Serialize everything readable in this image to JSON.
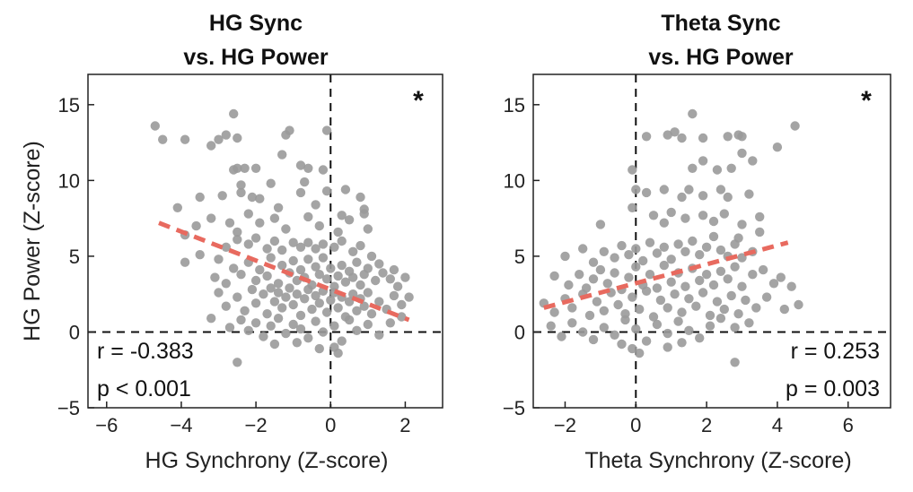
{
  "chart_data": [
    {
      "type": "scatter",
      "title_lines": [
        "HG Sync",
        "vs. HG Power"
      ],
      "xlabel": "HG Synchrony (Z-score)",
      "ylabel": "HG Power (Z-score)",
      "xlim": [
        -6.5,
        3
      ],
      "ylim": [
        -5,
        17
      ],
      "xticks": [
        -6,
        -4,
        -2,
        0,
        2
      ],
      "yticks": [
        -5,
        0,
        5,
        10,
        15
      ],
      "xtick_labels": [
        "−6",
        "−4",
        "−2",
        "0",
        "2"
      ],
      "ytick_labels": [
        "−5",
        "0",
        "5",
        "10",
        "15"
      ],
      "stats": [
        "r = -0.383",
        "p < 0.001"
      ],
      "significance": "*",
      "point_color": "#9a9a9a",
      "fit_color": "#e86a5f",
      "fit_line": [
        [
          -4.6,
          7.2
        ],
        [
          2.1,
          0.8
        ]
      ],
      "points": [
        [
          -4.7,
          13.6
        ],
        [
          -4.5,
          12.7
        ],
        [
          -3.9,
          12.7
        ],
        [
          -3.2,
          12.3
        ],
        [
          -3.0,
          12.7
        ],
        [
          -2.8,
          13.0
        ],
        [
          -2.6,
          14.4
        ],
        [
          -2.5,
          12.8
        ],
        [
          -1.2,
          13.0
        ],
        [
          -1.1,
          13.3
        ],
        [
          -0.1,
          13.3
        ],
        [
          -2.5,
          10.8
        ],
        [
          -2.3,
          10.8
        ],
        [
          -2.6,
          10.7
        ],
        [
          -2.0,
          10.8
        ],
        [
          -1.3,
          11.7
        ],
        [
          -0.8,
          11.0
        ],
        [
          -0.6,
          10.8
        ],
        [
          -0.2,
          10.7
        ],
        [
          -3.5,
          8.9
        ],
        [
          -2.9,
          9.0
        ],
        [
          -2.4,
          9.7
        ],
        [
          -2.4,
          9.2
        ],
        [
          -2.1,
          8.9
        ],
        [
          -1.9,
          8.8
        ],
        [
          -1.6,
          9.8
        ],
        [
          -1.4,
          8.2
        ],
        [
          -0.8,
          9.2
        ],
        [
          -0.7,
          9.9
        ],
        [
          -0.4,
          8.4
        ],
        [
          -0.1,
          9.3
        ],
        [
          0.4,
          9.4
        ],
        [
          0.8,
          8.9
        ],
        [
          0.9,
          8.1
        ],
        [
          -4.1,
          8.2
        ],
        [
          -3.6,
          7.0
        ],
        [
          -3.2,
          7.5
        ],
        [
          -2.7,
          7.2
        ],
        [
          -2.5,
          6.6
        ],
        [
          -2.2,
          7.8
        ],
        [
          -1.9,
          7.2
        ],
        [
          -1.5,
          7.5
        ],
        [
          -1.2,
          6.8
        ],
        [
          -0.6,
          7.6
        ],
        [
          -0.3,
          7.0
        ],
        [
          0.3,
          7.7
        ],
        [
          0.5,
          7.4
        ],
        [
          0.9,
          7.8
        ],
        [
          1.0,
          6.8
        ],
        [
          0.2,
          6.6
        ],
        [
          -3.9,
          6.4
        ],
        [
          -3.9,
          4.6
        ],
        [
          -3.5,
          5.1
        ],
        [
          -3.0,
          4.8
        ],
        [
          -2.8,
          5.6
        ],
        [
          -2.5,
          6.1
        ],
        [
          -2.2,
          5.8
        ],
        [
          -2.0,
          6.2
        ],
        [
          -1.7,
          5.5
        ],
        [
          -1.5,
          6.0
        ],
        [
          -1.3,
          5.4
        ],
        [
          -1.0,
          5.9
        ],
        [
          -0.8,
          5.6
        ],
        [
          -0.6,
          5.9
        ],
        [
          -0.4,
          5.5
        ],
        [
          -0.2,
          5.8
        ],
        [
          0.1,
          5.6
        ],
        [
          0.3,
          6.0
        ],
        [
          0.6,
          5.3
        ],
        [
          0.8,
          5.7
        ],
        [
          1.1,
          5.0
        ],
        [
          1.3,
          4.5
        ],
        [
          -3.1,
          3.6
        ],
        [
          -2.8,
          3.2
        ],
        [
          -2.6,
          4.2
        ],
        [
          -2.4,
          3.8
        ],
        [
          -2.2,
          4.6
        ],
        [
          -2.0,
          3.4
        ],
        [
          -1.9,
          4.1
        ],
        [
          -1.7,
          3.7
        ],
        [
          -1.6,
          4.9
        ],
        [
          -1.4,
          3.2
        ],
        [
          -1.3,
          4.4
        ],
        [
          -1.1,
          3.9
        ],
        [
          -1.0,
          4.7
        ],
        [
          -0.9,
          3.4
        ],
        [
          -0.8,
          4.1
        ],
        [
          -0.7,
          3.6
        ],
        [
          -0.6,
          4.8
        ],
        [
          -0.5,
          3.1
        ],
        [
          -0.4,
          4.3
        ],
        [
          -0.3,
          3.8
        ],
        [
          -0.2,
          4.9
        ],
        [
          -0.1,
          3.5
        ],
        [
          0.0,
          4.2
        ],
        [
          0.1,
          3.0
        ],
        [
          0.2,
          3.7
        ],
        [
          0.3,
          4.4
        ],
        [
          0.4,
          3.3
        ],
        [
          0.5,
          4.0
        ],
        [
          0.6,
          3.6
        ],
        [
          0.7,
          4.6
        ],
        [
          0.8,
          3.1
        ],
        [
          0.9,
          3.8
        ],
        [
          1.0,
          4.2
        ],
        [
          1.2,
          3.4
        ],
        [
          1.4,
          3.9
        ],
        [
          1.6,
          3.5
        ],
        [
          1.8,
          3.0
        ],
        [
          2.0,
          3.6
        ],
        [
          1.7,
          4.1
        ],
        [
          -3.0,
          2.6
        ],
        [
          -2.8,
          1.7
        ],
        [
          -2.5,
          2.3
        ],
        [
          -2.3,
          1.4
        ],
        [
          -2.1,
          2.8
        ],
        [
          -2.0,
          1.9
        ],
        [
          -1.8,
          2.5
        ],
        [
          -1.7,
          1.2
        ],
        [
          -1.6,
          2.9
        ],
        [
          -1.5,
          2.0
        ],
        [
          -1.4,
          2.6
        ],
        [
          -1.3,
          1.6
        ],
        [
          -1.2,
          2.3
        ],
        [
          -1.1,
          2.9
        ],
        [
          -1.0,
          1.8
        ],
        [
          -0.9,
          2.5
        ],
        [
          -0.8,
          1.1
        ],
        [
          -0.7,
          2.2
        ],
        [
          -0.6,
          2.8
        ],
        [
          -0.5,
          1.5
        ],
        [
          -0.4,
          2.4
        ],
        [
          -0.3,
          1.9
        ],
        [
          -0.2,
          2.7
        ],
        [
          -0.1,
          1.3
        ],
        [
          0.0,
          2.1
        ],
        [
          0.1,
          2.6
        ],
        [
          0.2,
          1.6
        ],
        [
          0.3,
          2.3
        ],
        [
          0.4,
          1.0
        ],
        [
          0.5,
          2.0
        ],
        [
          0.6,
          2.5
        ],
        [
          0.7,
          1.4
        ],
        [
          0.8,
          2.2
        ],
        [
          0.9,
          1.7
        ],
        [
          1.0,
          2.6
        ],
        [
          1.1,
          1.2
        ],
        [
          1.3,
          2.0
        ],
        [
          1.5,
          1.5
        ],
        [
          1.7,
          2.4
        ],
        [
          1.9,
          1.8
        ],
        [
          2.1,
          2.3
        ],
        [
          -3.2,
          0.9
        ],
        [
          -2.7,
          0.3
        ],
        [
          -2.4,
          0.8
        ],
        [
          -2.2,
          0.1
        ],
        [
          -2.0,
          0.6
        ],
        [
          -1.8,
          -0.3
        ],
        [
          -1.6,
          0.4
        ],
        [
          -1.4,
          0.9
        ],
        [
          -1.2,
          -0.1
        ],
        [
          -1.0,
          0.5
        ],
        [
          -0.8,
          0.2
        ],
        [
          -0.6,
          -0.4
        ],
        [
          -0.4,
          0.7
        ],
        [
          -0.2,
          0.0
        ],
        [
          0.1,
          0.4
        ],
        [
          0.3,
          -0.6
        ],
        [
          0.5,
          0.8
        ],
        [
          0.7,
          0.1
        ],
        [
          1.0,
          0.5
        ],
        [
          1.3,
          -0.2
        ],
        [
          1.6,
          0.6
        ],
        [
          1.9,
          1.0
        ],
        [
          -2.5,
          -2.0
        ],
        [
          -0.3,
          -1.1
        ],
        [
          0.2,
          -1.4
        ],
        [
          -1.5,
          -0.8
        ],
        [
          0.1,
          -1.0
        ],
        [
          -0.9,
          -0.7
        ]
      ]
    },
    {
      "type": "scatter",
      "title_lines": [
        "Theta Sync",
        "vs. HG Power"
      ],
      "xlabel": "Theta Synchrony (Z-score)",
      "ylabel": "",
      "xlim": [
        -2.9,
        7.2
      ],
      "ylim": [
        -5,
        17
      ],
      "xticks": [
        -2,
        0,
        2,
        4,
        6
      ],
      "yticks": [
        -5,
        0,
        5,
        10,
        15
      ],
      "xtick_labels": [
        "−2",
        "0",
        "2",
        "4",
        "6"
      ],
      "ytick_labels": [
        "−5",
        "0",
        "5",
        "10",
        "15"
      ],
      "stats": [
        "r = 0.253",
        "p = 0.003"
      ],
      "significance": "*",
      "point_color": "#9a9a9a",
      "fit_color": "#e86a5f",
      "fit_line": [
        [
          -2.6,
          1.6
        ],
        [
          4.3,
          5.9
        ]
      ],
      "points": [
        [
          0.3,
          12.9
        ],
        [
          0.9,
          13.0
        ],
        [
          1.1,
          13.2
        ],
        [
          1.3,
          12.8
        ],
        [
          1.6,
          14.4
        ],
        [
          1.9,
          12.8
        ],
        [
          2.6,
          12.9
        ],
        [
          2.9,
          13.0
        ],
        [
          3.0,
          12.9
        ],
        [
          4.0,
          12.2
        ],
        [
          4.5,
          13.6
        ],
        [
          -0.1,
          10.7
        ],
        [
          1.6,
          10.8
        ],
        [
          1.9,
          11.3
        ],
        [
          2.3,
          10.7
        ],
        [
          2.7,
          10.8
        ],
        [
          3.0,
          11.8
        ],
        [
          3.3,
          11.3
        ],
        [
          0.0,
          9.4
        ],
        [
          0.3,
          9.2
        ],
        [
          0.8,
          9.4
        ],
        [
          1.3,
          8.9
        ],
        [
          1.5,
          9.4
        ],
        [
          1.9,
          9.0
        ],
        [
          2.4,
          9.4
        ],
        [
          2.6,
          8.9
        ],
        [
          3.2,
          9.1
        ],
        [
          -0.1,
          8.2
        ],
        [
          0.5,
          7.7
        ],
        [
          0.8,
          7.2
        ],
        [
          1.0,
          7.9
        ],
        [
          1.4,
          7.5
        ],
        [
          1.9,
          7.7
        ],
        [
          2.2,
          7.3
        ],
        [
          2.5,
          7.8
        ],
        [
          3.0,
          7.1
        ],
        [
          3.5,
          7.6
        ],
        [
          -1.0,
          7.1
        ],
        [
          -2.0,
          5.0
        ],
        [
          -1.5,
          5.5
        ],
        [
          -1.2,
          4.6
        ],
        [
          -0.9,
          5.3
        ],
        [
          -0.6,
          4.9
        ],
        [
          -0.4,
          5.7
        ],
        [
          -0.2,
          5.1
        ],
        [
          0.0,
          5.5
        ],
        [
          0.2,
          4.7
        ],
        [
          0.4,
          5.9
        ],
        [
          0.6,
          5.2
        ],
        [
          0.8,
          5.6
        ],
        [
          1.0,
          4.8
        ],
        [
          1.2,
          5.8
        ],
        [
          1.4,
          5.3
        ],
        [
          1.6,
          6.0
        ],
        [
          1.8,
          5.1
        ],
        [
          2.0,
          5.6
        ],
        [
          2.2,
          6.3
        ],
        [
          2.4,
          5.4
        ],
        [
          2.6,
          5.0
        ],
        [
          2.8,
          5.8
        ],
        [
          3.0,
          4.9
        ],
        [
          3.3,
          5.3
        ],
        [
          3.5,
          6.6
        ],
        [
          2.9,
          6.2
        ],
        [
          -2.3,
          3.7
        ],
        [
          -1.9,
          3.1
        ],
        [
          -1.6,
          3.8
        ],
        [
          -1.4,
          2.9
        ],
        [
          -1.2,
          3.5
        ],
        [
          -1.0,
          4.1
        ],
        [
          -0.8,
          3.2
        ],
        [
          -0.6,
          3.9
        ],
        [
          -0.4,
          2.8
        ],
        [
          -0.2,
          3.6
        ],
        [
          0.0,
          4.3
        ],
        [
          0.2,
          3.1
        ],
        [
          0.4,
          3.8
        ],
        [
          0.6,
          2.9
        ],
        [
          0.8,
          4.4
        ],
        [
          1.0,
          3.3
        ],
        [
          1.2,
          3.9
        ],
        [
          1.4,
          3.0
        ],
        [
          1.6,
          4.2
        ],
        [
          1.8,
          3.4
        ],
        [
          2.0,
          3.8
        ],
        [
          2.2,
          3.1
        ],
        [
          2.4,
          4.0
        ],
        [
          2.6,
          3.5
        ],
        [
          2.8,
          4.3
        ],
        [
          3.0,
          3.0
        ],
        [
          3.3,
          3.8
        ],
        [
          3.6,
          4.1
        ],
        [
          3.9,
          3.2
        ],
        [
          4.1,
          3.6
        ],
        [
          4.4,
          3.0
        ],
        [
          -2.6,
          1.9
        ],
        [
          -2.3,
          1.3
        ],
        [
          -2.0,
          2.2
        ],
        [
          -1.8,
          1.6
        ],
        [
          -1.5,
          2.5
        ],
        [
          -1.3,
          1.1
        ],
        [
          -1.1,
          2.0
        ],
        [
          -0.9,
          1.4
        ],
        [
          -0.7,
          2.6
        ],
        [
          -0.5,
          1.8
        ],
        [
          -0.3,
          1.2
        ],
        [
          -0.1,
          2.3
        ],
        [
          0.1,
          1.5
        ],
        [
          0.3,
          2.7
        ],
        [
          0.5,
          1.0
        ],
        [
          0.7,
          2.1
        ],
        [
          0.9,
          1.6
        ],
        [
          1.1,
          2.5
        ],
        [
          1.3,
          1.3
        ],
        [
          1.5,
          2.2
        ],
        [
          1.7,
          1.7
        ],
        [
          1.9,
          2.6
        ],
        [
          2.1,
          1.1
        ],
        [
          2.3,
          2.0
        ],
        [
          2.5,
          1.5
        ],
        [
          2.7,
          2.4
        ],
        [
          2.9,
          1.2
        ],
        [
          3.1,
          2.1
        ],
        [
          3.4,
          1.6
        ],
        [
          3.7,
          2.3
        ],
        [
          4.2,
          1.5
        ],
        [
          4.6,
          1.8
        ],
        [
          -2.4,
          0.4
        ],
        [
          -2.1,
          -0.3
        ],
        [
          -1.8,
          0.6
        ],
        [
          -1.5,
          0.0
        ],
        [
          -1.2,
          -0.5
        ],
        [
          -0.9,
          0.3
        ],
        [
          -0.6,
          -0.2
        ],
        [
          -0.3,
          0.8
        ],
        [
          0.0,
          0.2
        ],
        [
          0.3,
          -0.6
        ],
        [
          0.6,
          0.5
        ],
        [
          0.9,
          -0.1
        ],
        [
          1.2,
          0.7
        ],
        [
          1.5,
          0.1
        ],
        [
          1.8,
          -0.4
        ],
        [
          2.1,
          0.4
        ],
        [
          2.4,
          0.9
        ],
        [
          2.8,
          0.3
        ],
        [
          3.2,
          0.6
        ],
        [
          -0.1,
          -1.1
        ],
        [
          0.1,
          -1.4
        ],
        [
          0.9,
          -1.0
        ],
        [
          2.8,
          -2.0
        ],
        [
          -0.4,
          -0.8
        ],
        [
          1.3,
          -0.7
        ]
      ]
    }
  ]
}
